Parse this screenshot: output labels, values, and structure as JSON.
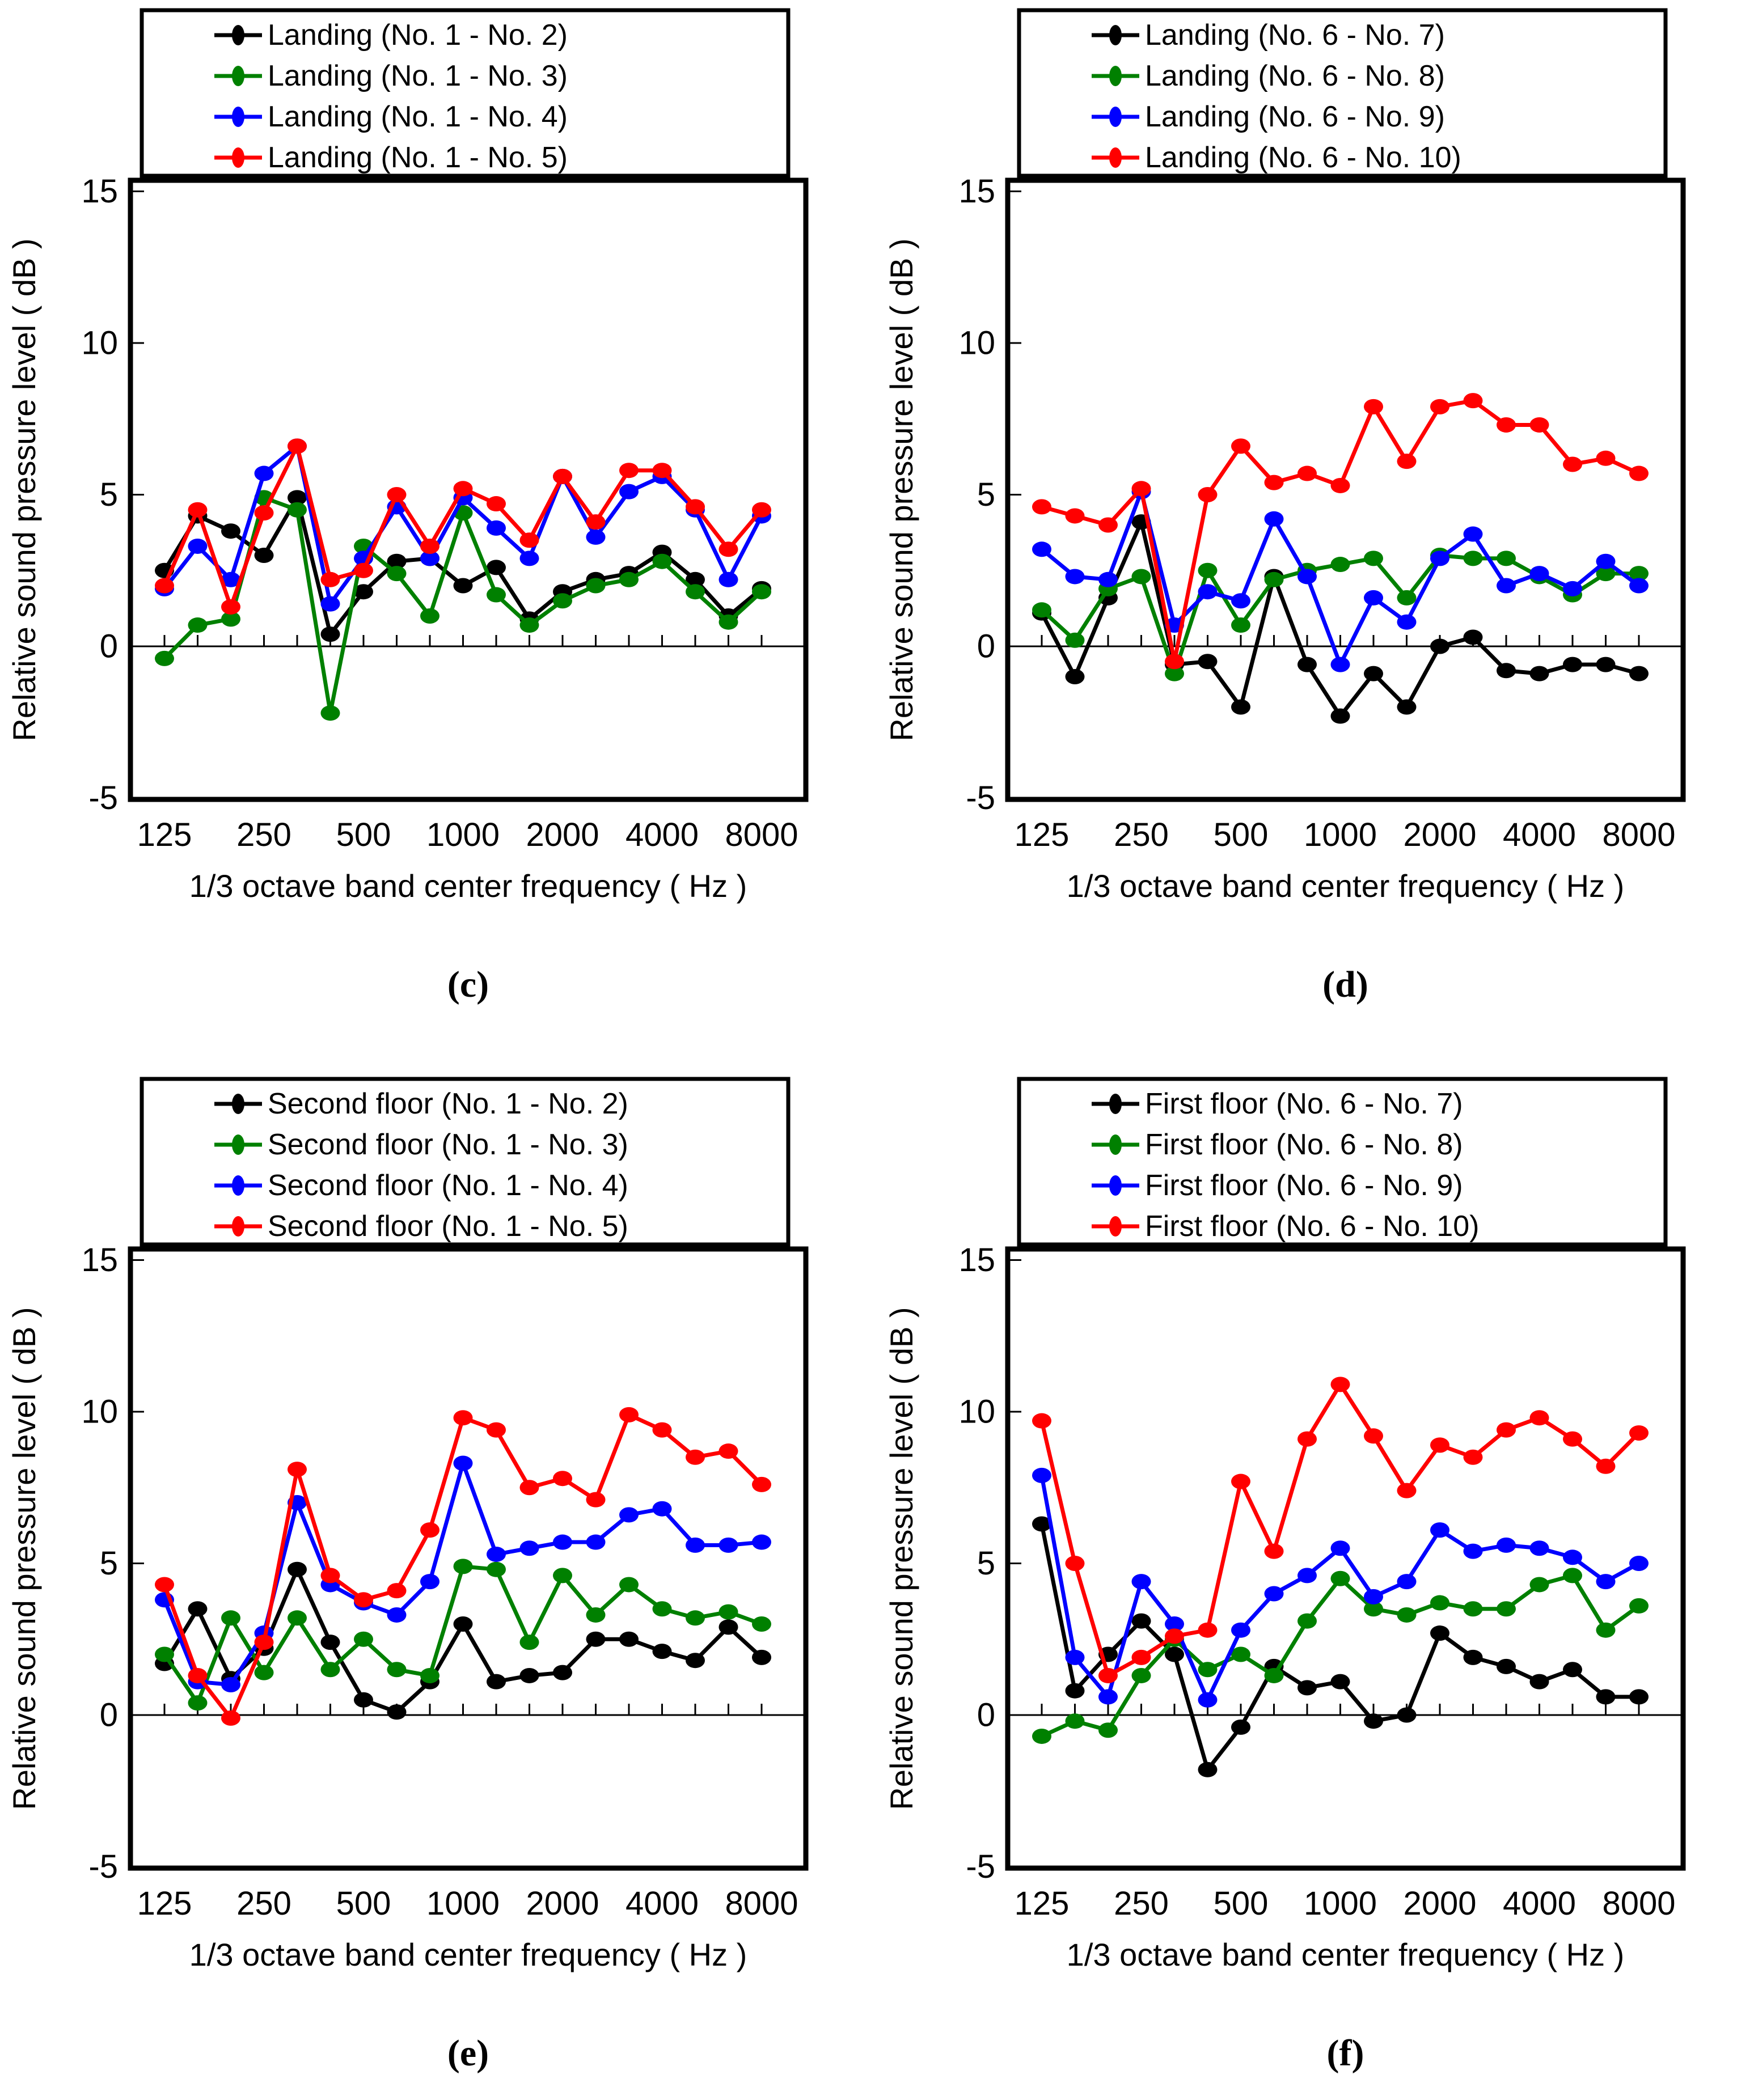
{
  "figure": {
    "background": "#ffffff",
    "captions": {
      "c": "(c)",
      "d": "(d)",
      "e": "(e)",
      "f": "(f)"
    }
  },
  "colors": {
    "black": "#000000",
    "green": "#008000",
    "blue": "#0000ff",
    "red": "#ff0000"
  },
  "axis": {
    "ylabel": "Relative sound pressure level ( dB )",
    "xlabel": "1/3 octave band center frequency ( Hz )",
    "y_ticks": [
      15,
      10,
      5,
      0,
      -5
    ],
    "ylim": [
      -5,
      15
    ],
    "x_bands": [
      125,
      160,
      200,
      250,
      315,
      400,
      500,
      630,
      800,
      1000,
      1250,
      1600,
      2000,
      2500,
      3150,
      4000,
      5000,
      6300,
      8000
    ],
    "x_tick_labels": [
      "125",
      "250",
      "500",
      "1000",
      "2000",
      "4000",
      "8000"
    ],
    "x_tick_band_index": [
      0,
      3,
      6,
      9,
      12,
      15,
      18
    ],
    "grid": "zero-line-only",
    "legend_position": "top-boxed"
  },
  "chart_data": [
    {
      "panel": "c",
      "type": "line",
      "caption": "(c)",
      "series": [
        {
          "name": "Landing (No. 1 - No. 2)",
          "color": "black",
          "values": [
            2.5,
            4.3,
            3.8,
            3.0,
            4.9,
            0.4,
            1.8,
            2.8,
            2.9,
            2.0,
            2.6,
            0.9,
            1.8,
            2.2,
            2.4,
            3.1,
            2.2,
            1.0,
            1.9
          ]
        },
        {
          "name": "Landing (No. 1 - No. 3)",
          "color": "green",
          "values": [
            -0.4,
            0.7,
            0.9,
            4.9,
            4.5,
            -2.2,
            3.3,
            2.4,
            1.0,
            4.4,
            1.7,
            0.7,
            1.5,
            2.0,
            2.2,
            2.8,
            1.8,
            0.8,
            1.8
          ]
        },
        {
          "name": "Landing (No. 1 - No. 4)",
          "color": "blue",
          "values": [
            1.9,
            3.3,
            2.2,
            5.7,
            6.6,
            1.4,
            2.9,
            4.6,
            2.9,
            4.9,
            3.9,
            2.9,
            5.6,
            3.6,
            5.1,
            5.6,
            4.5,
            2.2,
            4.3
          ]
        },
        {
          "name": "Landing (No. 1 - No. 5)",
          "color": "red",
          "values": [
            2.0,
            4.5,
            1.3,
            4.4,
            6.6,
            2.2,
            2.5,
            5.0,
            3.3,
            5.2,
            4.7,
            3.5,
            5.6,
            4.1,
            5.8,
            5.8,
            4.6,
            3.2,
            4.5
          ]
        }
      ]
    },
    {
      "panel": "d",
      "type": "line",
      "caption": "(d)",
      "series": [
        {
          "name": "Landing (No. 6 - No. 7)",
          "color": "black",
          "values": [
            1.1,
            -1.0,
            1.6,
            4.1,
            -0.6,
            -0.5,
            -2.0,
            2.3,
            -0.6,
            -2.3,
            -0.9,
            -2.0,
            0.0,
            0.3,
            -0.8,
            -0.9,
            -0.6,
            -0.6,
            -0.9
          ]
        },
        {
          "name": "Landing (No. 6 - No. 8)",
          "color": "green",
          "values": [
            1.2,
            0.2,
            1.9,
            2.3,
            -0.9,
            2.5,
            0.7,
            2.2,
            2.5,
            2.7,
            2.9,
            1.6,
            3.0,
            2.9,
            2.9,
            2.3,
            1.7,
            2.4,
            2.4
          ]
        },
        {
          "name": "Landing (No. 6 - No. 9)",
          "color": "blue",
          "values": [
            3.2,
            2.3,
            2.2,
            5.1,
            0.7,
            1.8,
            1.5,
            4.2,
            2.3,
            -0.6,
            1.6,
            0.8,
            2.9,
            3.7,
            2.0,
            2.4,
            1.9,
            2.8,
            2.0
          ]
        },
        {
          "name": "Landing (No. 6 - No. 10)",
          "color": "red",
          "values": [
            4.6,
            4.3,
            4.0,
            5.2,
            -0.5,
            5.0,
            6.6,
            5.4,
            5.7,
            5.3,
            7.9,
            6.1,
            7.9,
            8.1,
            7.3,
            7.3,
            6.0,
            6.2,
            5.7
          ]
        }
      ]
    },
    {
      "panel": "e",
      "type": "line",
      "caption": "(e)",
      "series": [
        {
          "name": "Second floor (No. 1 - No. 2)",
          "color": "black",
          "values": [
            1.7,
            3.5,
            1.2,
            2.2,
            4.8,
            2.4,
            0.5,
            0.1,
            1.1,
            3.0,
            1.1,
            1.3,
            1.4,
            2.5,
            2.5,
            2.1,
            1.8,
            2.9,
            1.9
          ]
        },
        {
          "name": "Second floor (No. 1 - No. 3)",
          "color": "green",
          "values": [
            2.0,
            0.4,
            3.2,
            1.4,
            3.2,
            1.5,
            2.5,
            1.5,
            1.3,
            4.9,
            4.8,
            2.4,
            4.6,
            3.3,
            4.3,
            3.5,
            3.2,
            3.4,
            3.0
          ]
        },
        {
          "name": "Second floor (No. 1 - No. 4)",
          "color": "blue",
          "values": [
            3.8,
            1.1,
            1.0,
            2.7,
            7.0,
            4.3,
            3.7,
            3.3,
            4.4,
            8.3,
            5.3,
            5.5,
            5.7,
            5.7,
            6.6,
            6.8,
            5.6,
            5.6,
            5.7
          ]
        },
        {
          "name": "Second floor (No. 1 - No. 5)",
          "color": "red",
          "values": [
            4.3,
            1.3,
            -0.1,
            2.4,
            8.1,
            4.6,
            3.8,
            4.1,
            6.1,
            9.8,
            9.4,
            7.5,
            7.8,
            7.1,
            9.9,
            9.4,
            8.5,
            8.7,
            7.6
          ]
        }
      ]
    },
    {
      "panel": "f",
      "type": "line",
      "caption": "(f)",
      "series": [
        {
          "name": "First floor (No. 6 - No. 7)",
          "color": "black",
          "values": [
            6.3,
            0.8,
            2.0,
            3.1,
            2.0,
            -1.8,
            -0.4,
            1.6,
            0.9,
            1.1,
            -0.2,
            0.0,
            2.7,
            1.9,
            1.6,
            1.1,
            1.5,
            0.6,
            0.6
          ]
        },
        {
          "name": "First floor (No. 6 - No. 8)",
          "color": "green",
          "values": [
            -0.7,
            -0.2,
            -0.5,
            1.3,
            2.5,
            1.5,
            2.0,
            1.3,
            3.1,
            4.5,
            3.5,
            3.3,
            3.7,
            3.5,
            3.5,
            4.3,
            4.6,
            2.8,
            3.6
          ]
        },
        {
          "name": "First floor (No. 6 - No. 9)",
          "color": "blue",
          "values": [
            7.9,
            1.9,
            0.6,
            4.4,
            3.0,
            0.5,
            2.8,
            4.0,
            4.6,
            5.5,
            3.9,
            4.4,
            6.1,
            5.4,
            5.6,
            5.5,
            5.2,
            4.4,
            5.0
          ]
        },
        {
          "name": "First floor (No. 6 - No. 10)",
          "color": "red",
          "values": [
            9.7,
            5.0,
            1.3,
            1.9,
            2.6,
            2.8,
            7.7,
            5.4,
            9.1,
            10.9,
            9.2,
            7.4,
            8.9,
            8.5,
            9.4,
            9.8,
            9.1,
            8.2,
            9.3
          ]
        }
      ]
    }
  ]
}
